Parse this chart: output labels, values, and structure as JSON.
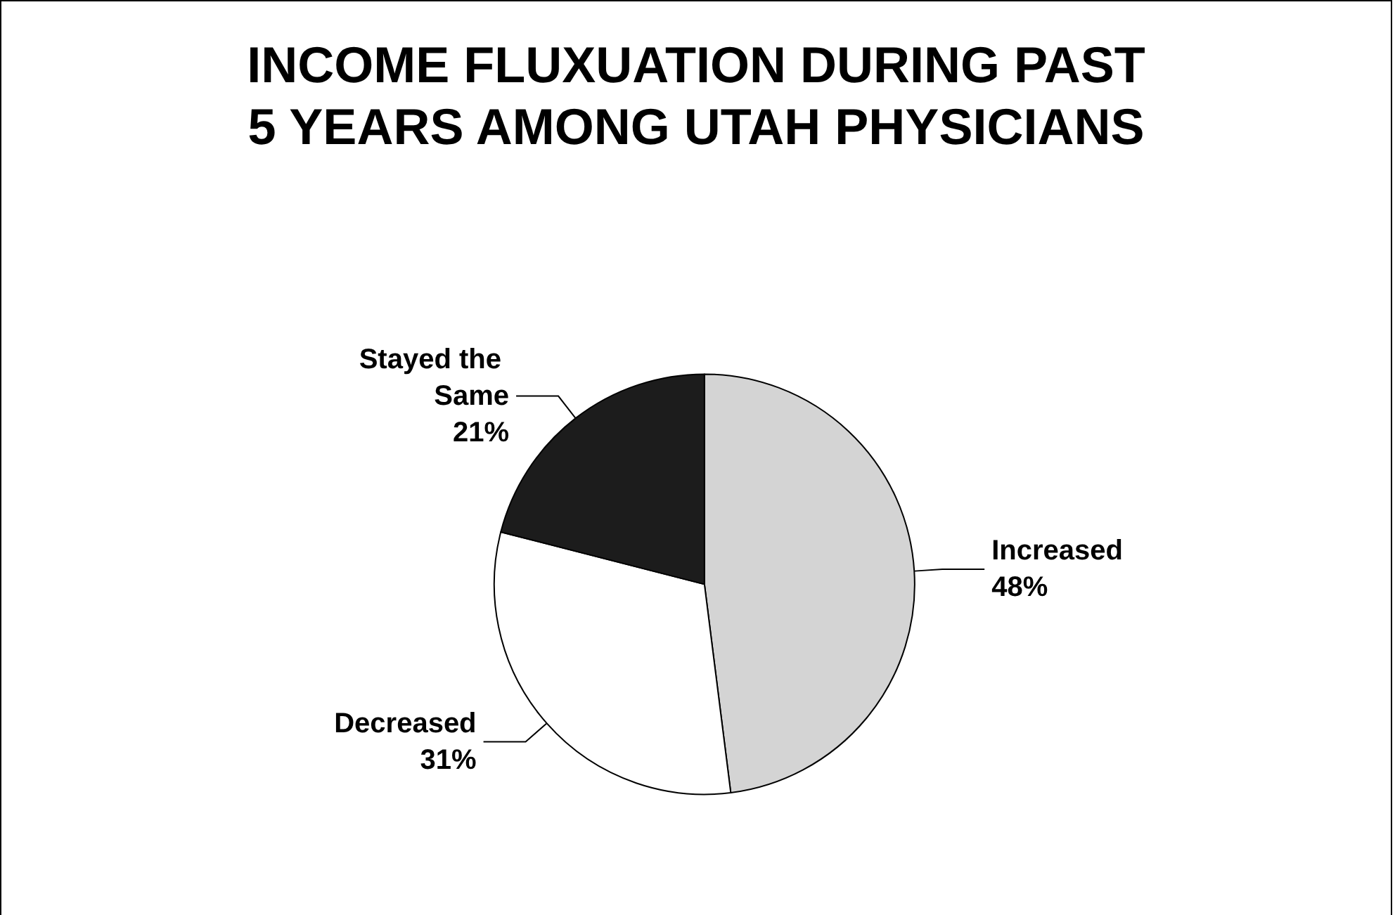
{
  "chart_data": {
    "type": "pie",
    "title": "INCOME FLUXUATION DURING PAST\n5 YEARS AMONG UTAH PHYSICIANS",
    "categories": [
      "Increased",
      "Decreased",
      "Stayed the Same"
    ],
    "values": [
      48,
      31,
      21
    ],
    "value_labels": [
      "48%",
      "31%",
      "21%"
    ],
    "colors": [
      "#d4d4d4",
      "#ffffff",
      "#1c1c1c"
    ],
    "legend": false
  }
}
